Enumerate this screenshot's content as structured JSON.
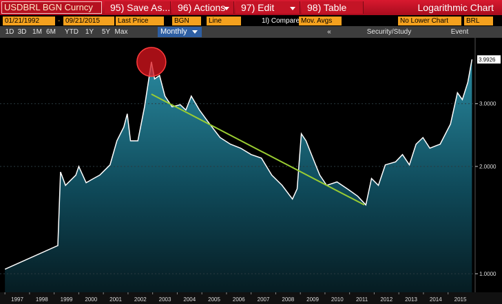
{
  "toolbar": {
    "security": "USDBRL BGN Curncy",
    "menus": [
      "95) Save As...",
      "96) Actions",
      "97) Edit",
      "98) Table"
    ],
    "chart_title": "Logarithmic Chart"
  },
  "fields": {
    "start": "01/21/1992",
    "separator": "-",
    "end": "09/21/2015",
    "price": "Last Price",
    "source": "BGN",
    "style": "Line",
    "compare": "1l) Compare",
    "mov_avgs": "Mov. Avgs",
    "lower": "No Lower Chart",
    "currency": "BRL"
  },
  "ranges": [
    "1D",
    "3D",
    "1M",
    "6M",
    "YTD",
    "1Y",
    "5Y",
    "Max"
  ],
  "period": "Monthly",
  "nav": {
    "back": "«",
    "study": "Security/Study",
    "event": "Event"
  },
  "chart_data": {
    "type": "area",
    "log_scale": true,
    "grid": true,
    "color": "#ffffff",
    "x": [
      1997.0,
      1999.15,
      1999.26,
      1999.46,
      1999.88,
      2000.0,
      2000.3,
      2000.6,
      2000.85,
      2001.27,
      2001.55,
      2001.83,
      2001.97,
      2002.1,
      2002.4,
      2002.67,
      2002.95,
      2003.08,
      2003.28,
      2003.5,
      2003.79,
      2004.12,
      2004.35,
      2004.57,
      2004.9,
      2005.32,
      2005.74,
      2006.16,
      2006.58,
      2007.0,
      2007.42,
      2007.84,
      2008.26,
      2008.68,
      2008.87,
      2009.04,
      2009.23,
      2009.51,
      2009.79,
      2010.07,
      2010.49,
      2010.91,
      2011.33,
      2011.66,
      2011.89,
      2012.17,
      2012.45,
      2012.87,
      2013.15,
      2013.43,
      2013.7,
      2013.98,
      2014.26,
      2014.68,
      2015.1,
      2015.38,
      2015.58,
      2015.8,
      2015.97
    ],
    "values": [
      1.03,
      1.2,
      1.93,
      1.77,
      1.89,
      2.0,
      1.8,
      1.85,
      1.89,
      2.02,
      2.36,
      2.58,
      2.81,
      2.36,
      2.36,
      2.94,
      3.93,
      3.52,
      3.6,
      3.15,
      2.94,
      2.98,
      2.88,
      3.15,
      2.88,
      2.63,
      2.41,
      2.31,
      2.25,
      2.16,
      2.11,
      1.89,
      1.77,
      1.62,
      1.73,
      2.47,
      2.36,
      2.11,
      1.89,
      1.77,
      1.81,
      1.73,
      1.65,
      1.56,
      1.85,
      1.77,
      2.02,
      2.06,
      2.16,
      2.02,
      2.31,
      2.41,
      2.25,
      2.31,
      2.63,
      3.22,
      3.08,
      3.44,
      3.9926
    ],
    "trendline": {
      "color": "#9acd32",
      "x": [
        2002.95,
        2011.6
      ],
      "values": [
        3.19,
        1.56
      ]
    },
    "xlim": [
      1996.8,
      2016.1
    ],
    "xticks": [
      1997,
      1998,
      1999,
      2000,
      2001,
      2002,
      2003,
      2004,
      2005,
      2006,
      2007,
      2008,
      2009,
      2010,
      2011,
      2012,
      2013,
      2014,
      2015
    ],
    "ylim": [
      0.887,
      4.59
    ],
    "yticks": [
      {
        "value": 1,
        "label": "1.0000"
      },
      {
        "value": 2,
        "label": "2.0000"
      },
      {
        "value": 3,
        "label": "3.0000"
      }
    ]
  }
}
